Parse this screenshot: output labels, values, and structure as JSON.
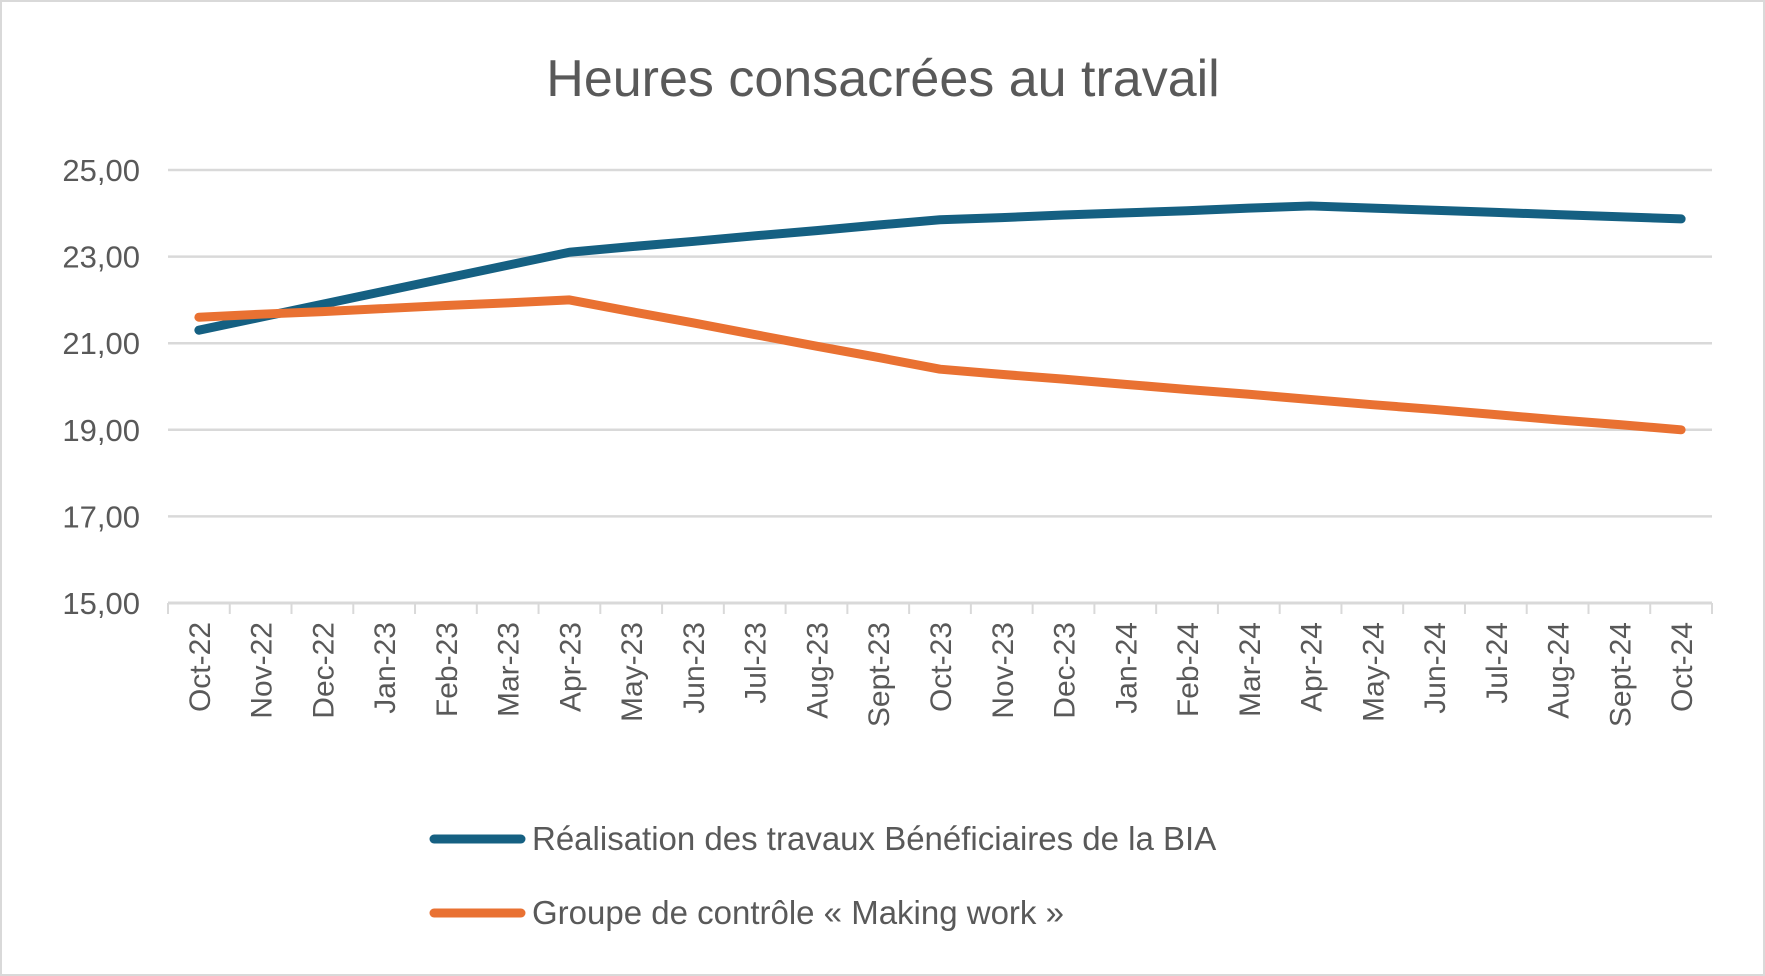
{
  "chart_data": {
    "type": "line",
    "title": "Heures consacrées au travail",
    "xlabel": "",
    "ylabel": "",
    "ylim": [
      15,
      25
    ],
    "yticks": [
      "15,00",
      "17,00",
      "19,00",
      "21,00",
      "23,00",
      "25,00"
    ],
    "ytick_values": [
      15,
      17,
      19,
      21,
      23,
      25
    ],
    "grid": true,
    "legend_position": "bottom",
    "categories": [
      "Oct-22",
      "Nov-22",
      "Dec-22",
      "Jan-23",
      "Feb-23",
      "Mar-23",
      "Apr-23",
      "May-23",
      "Jun-23",
      "Jul-23",
      "Aug-23",
      "Sept-23",
      "Oct-23",
      "Nov-23",
      "Dec-23",
      "Jan-24",
      "Feb-24",
      "Mar-24",
      "Apr-24",
      "May-24",
      "Jun-24",
      "Jul-24",
      "Aug-24",
      "Sept-24",
      "Oct-24"
    ],
    "series": [
      {
        "name": "Réalisation des travaux Bénéficiaires de la BIA",
        "color": "#156082",
        "values": [
          21.3,
          21.6,
          21.9,
          22.2,
          22.5,
          22.8,
          23.1,
          23.23,
          23.35,
          23.48,
          23.6,
          23.73,
          23.85,
          23.9,
          23.96,
          24.01,
          24.06,
          24.12,
          24.17,
          24.12,
          24.07,
          24.02,
          23.97,
          23.92,
          23.87
        ]
      },
      {
        "name": "Groupe de contrôle « Making work »",
        "color": "#E97132",
        "values": [
          21.6,
          21.67,
          21.73,
          21.8,
          21.87,
          21.93,
          22.0,
          21.73,
          21.47,
          21.2,
          20.93,
          20.67,
          20.4,
          20.28,
          20.17,
          20.05,
          19.93,
          19.82,
          19.7,
          19.58,
          19.47,
          19.35,
          19.23,
          19.12,
          19.0
        ]
      }
    ]
  }
}
